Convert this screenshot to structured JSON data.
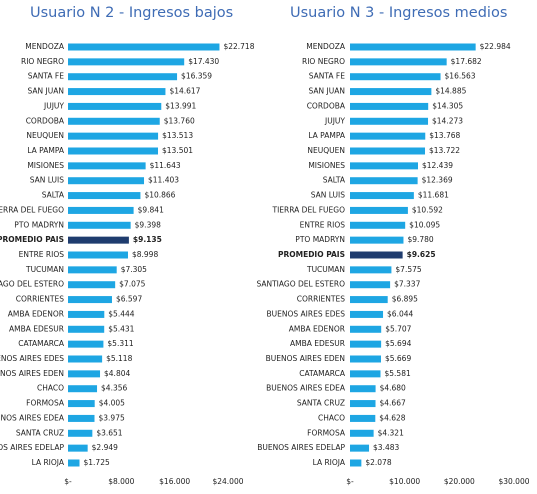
{
  "chart_data": [
    {
      "type": "hbar",
      "title": "Usuario N 2 - Ingresos bajos",
      "categories": [
        "MENDOZA",
        "RIO NEGRO",
        "SANTA FE",
        "SAN JUAN",
        "JUJUY",
        "CORDOBA",
        "NEUQUEN",
        "LA PAMPA",
        "MISIONES",
        "SAN LUIS",
        "SALTA",
        "TIERRA DEL FUEGO",
        "PTO MADRYN",
        "PROMEDIO PAIS",
        "ENTRE RIOS",
        "TUCUMAN",
        "SANTIAGO DEL ESTERO",
        "CORRIENTES",
        "AMBA EDENOR",
        "AMBA EDESUR",
        "CATAMARCA",
        "BUENOS AIRES EDES",
        "BUENOS AIRES EDEN",
        "CHACO",
        "FORMOSA",
        "BUENOS AIRES EDEA",
        "SANTA CRUZ",
        "BUENOS AIRES EDELAP",
        "LA RIOJA"
      ],
      "values": [
        22718,
        17430,
        16359,
        14617,
        13991,
        13760,
        13513,
        13501,
        11643,
        11403,
        10866,
        9841,
        9398,
        9135,
        8998,
        7305,
        7075,
        6597,
        5444,
        5431,
        5311,
        5118,
        4804,
        4356,
        4005,
        3975,
        3651,
        2949,
        1725
      ],
      "value_labels": [
        "$22.718",
        "$17.430",
        "$16.359",
        "$14.617",
        "$13.991",
        "$13.760",
        "$13.513",
        "$13.501",
        "$11.643",
        "$11.403",
        "$10.866",
        "$9.841",
        "$9.398",
        "$9.135",
        "$8.998",
        "$7.305",
        "$7.075",
        "$6.597",
        "$5.444",
        "$5.431",
        "$5.311",
        "$5.118",
        "$4.804",
        "$4.356",
        "$4.005",
        "$3.975",
        "$3.651",
        "$2.949",
        "$1.725"
      ],
      "colors": [
        "#1ea6e3",
        "#1ea6e3",
        "#1ea6e3",
        "#1ea6e3",
        "#1ea6e3",
        "#1ea6e3",
        "#1ea6e3",
        "#1ea6e3",
        "#1ea6e3",
        "#1ea6e3",
        "#1ea6e3",
        "#1ea6e3",
        "#1ea6e3",
        "#1f3c6e",
        "#1ea6e3",
        "#1ea6e3",
        "#1ea6e3",
        "#1ea6e3",
        "#1ea6e3",
        "#1ea6e3",
        "#1ea6e3",
        "#1ea6e3",
        "#1ea6e3",
        "#1ea6e3",
        "#1ea6e3",
        "#1ea6e3",
        "#1ea6e3",
        "#1ea6e3",
        "#1ea6e3"
      ],
      "xlim": [
        0,
        24000
      ],
      "xticks": [
        {
          "value": 0,
          "label": "$-"
        },
        {
          "value": 8000,
          "label": "$8.000"
        },
        {
          "value": 16000,
          "label": "$16.000"
        },
        {
          "value": 24000,
          "label": "$24.000"
        }
      ]
    },
    {
      "type": "hbar",
      "title": "Usuario N 3 - Ingresos medios",
      "categories": [
        "MENDOZA",
        "RIO NEGRO",
        "SANTA FE",
        "SAN JUAN",
        "CORDOBA",
        "JUJUY",
        "LA PAMPA",
        "NEUQUEN",
        "MISIONES",
        "SALTA",
        "SAN LUIS",
        "TIERRA DEL FUEGO",
        "ENTRE RIOS",
        "PTO MADRYN",
        "PROMEDIO PAIS",
        "TUCUMAN",
        "SANTIAGO DEL ESTERO",
        "CORRIENTES",
        "BUENOS AIRES EDES",
        "AMBA EDENOR",
        "AMBA EDESUR",
        "BUENOS AIRES EDEN",
        "CATAMARCA",
        "BUENOS AIRES EDEA",
        "SANTA CRUZ",
        "CHACO",
        "FORMOSA",
        "BUENOS AIRES EDELAP",
        "LA RIOJA"
      ],
      "values": [
        22984,
        17682,
        16563,
        14885,
        14305,
        14273,
        13768,
        13722,
        12439,
        12369,
        11681,
        10592,
        10095,
        9780,
        9625,
        7575,
        7337,
        6895,
        6044,
        5707,
        5694,
        5669,
        5581,
        4680,
        4667,
        4628,
        4321,
        3483,
        2078
      ],
      "value_labels": [
        "$22.984",
        "$17.682",
        "$16.563",
        "$14.885",
        "$14.305",
        "$14.273",
        "$13.768",
        "$13.722",
        "$12.439",
        "$12.369",
        "$11.681",
        "$10.592",
        "$10.095",
        "$9.780",
        "$9.625",
        "$7.575",
        "$7.337",
        "$6.895",
        "$6.044",
        "$5.707",
        "$5.694",
        "$5.669",
        "$5.581",
        "$4.680",
        "$4.667",
        "$4.628",
        "$4.321",
        "$3.483",
        "$2.078"
      ],
      "colors": [
        "#1ea6e3",
        "#1ea6e3",
        "#1ea6e3",
        "#1ea6e3",
        "#1ea6e3",
        "#1ea6e3",
        "#1ea6e3",
        "#1ea6e3",
        "#1ea6e3",
        "#1ea6e3",
        "#1ea6e3",
        "#1ea6e3",
        "#1ea6e3",
        "#1ea6e3",
        "#1f3c6e",
        "#1ea6e3",
        "#1ea6e3",
        "#1ea6e3",
        "#1ea6e3",
        "#1ea6e3",
        "#1ea6e3",
        "#1ea6e3",
        "#1ea6e3",
        "#1ea6e3",
        "#1ea6e3",
        "#1ea6e3",
        "#1ea6e3",
        "#1ea6e3",
        "#1ea6e3"
      ],
      "xlim": [
        0,
        30000
      ],
      "xticks": [
        {
          "value": 0,
          "label": "$-"
        },
        {
          "value": 10000,
          "label": "$10.000"
        },
        {
          "value": 20000,
          "label": "$20.000"
        },
        {
          "value": 30000,
          "label": "$30.000"
        }
      ]
    }
  ]
}
